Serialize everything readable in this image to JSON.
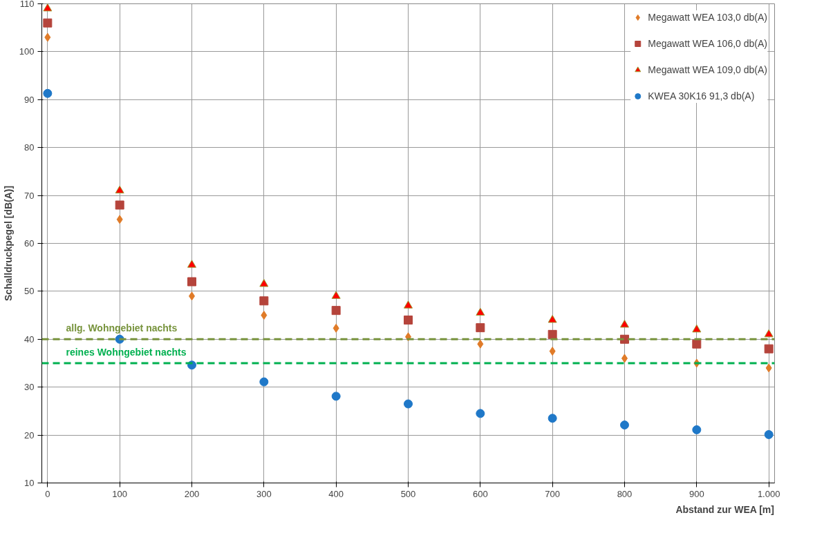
{
  "chart_data": {
    "type": "scatter",
    "xlabel": "Abstand zur WEA [m]",
    "ylabel": "Schalldruckpegel [dB(A)]",
    "x": [
      0,
      100,
      200,
      300,
      400,
      500,
      600,
      700,
      800,
      900,
      1000
    ],
    "xlim": [
      -8,
      1008
    ],
    "xticks": [
      0,
      100,
      200,
      300,
      400,
      500,
      600,
      700,
      800,
      900,
      {
        "value": 1000,
        "label": "1.000"
      }
    ],
    "ylim": [
      10,
      110
    ],
    "yticks": [
      10,
      20,
      30,
      40,
      50,
      60,
      70,
      80,
      90,
      100,
      110
    ],
    "grid": true,
    "legend": "top right",
    "series": [
      {
        "name": "Megawatt WEA 103,0 db(A)",
        "color": "#e07b28",
        "marker": "diamond",
        "values": [
          103,
          65,
          49,
          45,
          42.3,
          40.5,
          39,
          37.5,
          36,
          35,
          34
        ]
      },
      {
        "name": "Megawatt WEA 106,0 db(A)",
        "color": "#b5443b",
        "marker": "square",
        "values": [
          106,
          68,
          52,
          48,
          46,
          44,
          42.4,
          41,
          40,
          39,
          38
        ]
      },
      {
        "name": "Megawatt WEA 109,0 db(A)",
        "color": "#ff0000",
        "marker": "triangle",
        "values": [
          109,
          71,
          55.5,
          51.5,
          49,
          47,
          45.5,
          44,
          43,
          42,
          41
        ]
      },
      {
        "name": "KWEA 30K16 91,3 db(A)",
        "color": "#1f78c8",
        "marker": "circle",
        "values": [
          91.3,
          40,
          34.6,
          31.1,
          28.1,
          26.5,
          24.5,
          23.5,
          22.1,
          21.1,
          20.1
        ]
      }
    ],
    "ref_lines": [
      {
        "axis": "y",
        "value": 40,
        "label": "allg. Wohngebiet nachts",
        "color": "#77933c",
        "line_style": "dashed"
      },
      {
        "axis": "y",
        "value": 35,
        "label": "reines Wohngebiet nachts",
        "color": "#00b050",
        "line_style": "dashed"
      }
    ]
  }
}
